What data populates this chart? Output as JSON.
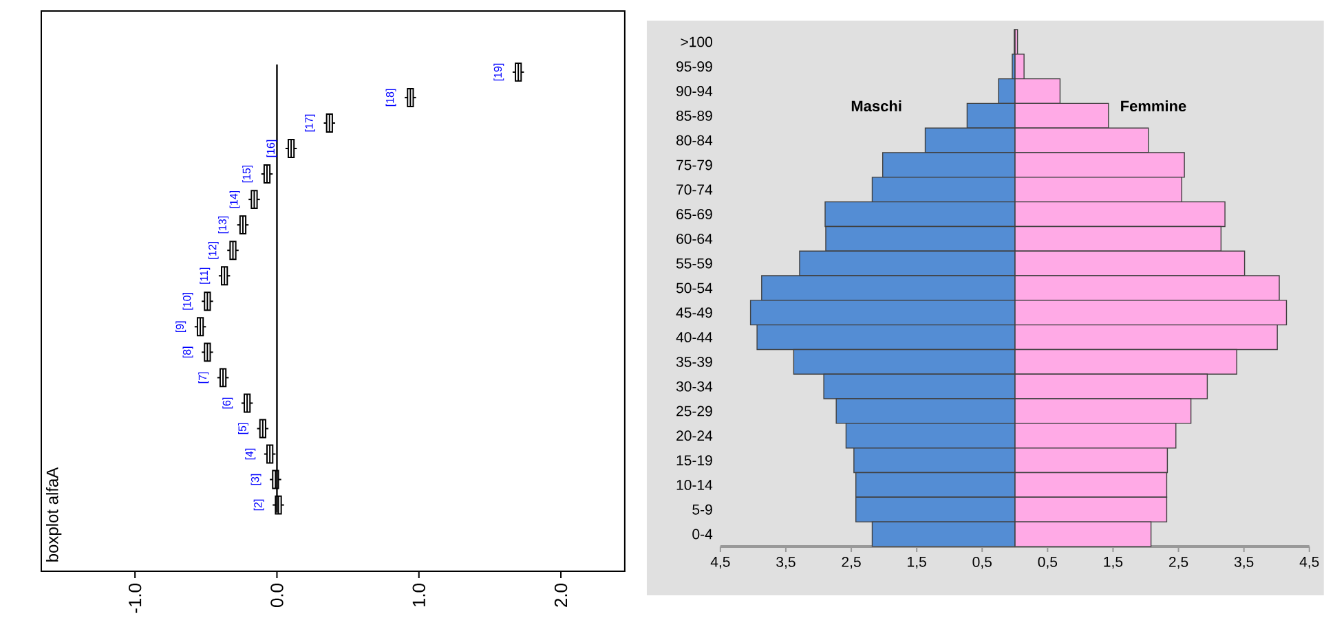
{
  "chart_data": [
    {
      "type": "box",
      "orientation": "horizontal",
      "title": "boxplot alfaA",
      "categories": [
        "[19]",
        "[18]",
        "[17]",
        "[16]",
        "[15]",
        "[14]",
        "[13]",
        "[12]",
        "[11]",
        "[10]",
        "[9]",
        "[8]",
        "[7]",
        "[6]",
        "[5]",
        "[4]",
        "[3]",
        "[2]"
      ],
      "boxes": [
        {
          "low": 1.66,
          "q1": 1.68,
          "median": 1.7,
          "q3": 1.72,
          "high": 1.74
        },
        {
          "low": 0.9,
          "q1": 0.92,
          "median": 0.94,
          "q3": 0.96,
          "high": 0.98
        },
        {
          "low": 0.33,
          "q1": 0.35,
          "median": 0.37,
          "q3": 0.39,
          "high": 0.41
        },
        {
          "low": 0.06,
          "q1": 0.08,
          "median": 0.1,
          "q3": 0.12,
          "high": 0.14
        },
        {
          "low": -0.11,
          "q1": -0.09,
          "median": -0.07,
          "q3": -0.05,
          "high": -0.03
        },
        {
          "low": -0.2,
          "q1": -0.18,
          "median": -0.16,
          "q3": -0.14,
          "high": -0.12
        },
        {
          "low": -0.28,
          "q1": -0.26,
          "median": -0.24,
          "q3": -0.22,
          "high": -0.2
        },
        {
          "low": -0.35,
          "q1": -0.33,
          "median": -0.31,
          "q3": -0.29,
          "high": -0.27
        },
        {
          "low": -0.41,
          "q1": -0.39,
          "median": -0.37,
          "q3": -0.35,
          "high": -0.33
        },
        {
          "low": -0.53,
          "q1": -0.51,
          "median": -0.49,
          "q3": -0.47,
          "high": -0.45
        },
        {
          "low": -0.58,
          "q1": -0.56,
          "median": -0.54,
          "q3": -0.52,
          "high": -0.5
        },
        {
          "low": -0.53,
          "q1": -0.51,
          "median": -0.49,
          "q3": -0.47,
          "high": -0.45
        },
        {
          "low": -0.42,
          "q1": -0.4,
          "median": -0.38,
          "q3": -0.36,
          "high": -0.34
        },
        {
          "low": -0.25,
          "q1": -0.23,
          "median": -0.21,
          "q3": -0.19,
          "high": -0.17
        },
        {
          "low": -0.14,
          "q1": -0.12,
          "median": -0.1,
          "q3": -0.08,
          "high": -0.06
        },
        {
          "low": -0.09,
          "q1": -0.07,
          "median": -0.05,
          "q3": -0.03,
          "high": -0.01
        },
        {
          "low": -0.05,
          "q1": -0.03,
          "median": -0.01,
          "q3": 0.01,
          "high": 0.03
        },
        {
          "low": -0.03,
          "q1": -0.01,
          "median": 0.01,
          "q3": 0.03,
          "high": 0.05
        }
      ],
      "xlim": [
        -1.66,
        2.45
      ],
      "xticks": [
        {
          "value": -1,
          "label": "-1.0"
        },
        {
          "value": 0,
          "label": "0.0"
        },
        {
          "value": 1,
          "label": "1.0"
        },
        {
          "value": 2,
          "label": "2.0"
        }
      ],
      "ref_lines": [
        {
          "axis": "x",
          "value": 0
        }
      ]
    },
    {
      "type": "bar",
      "orientation": "horizontal",
      "stacked": true,
      "categories": [
        ">100",
        "95-99",
        "90-94",
        "85-89",
        "80-84",
        "75-79",
        "70-74",
        "65-69",
        "60-64",
        "55-59",
        "50-54",
        "45-49",
        "40-44",
        "35-39",
        "30-34",
        "25-29",
        "20-24",
        "15-19",
        "10-14",
        "5-9",
        "0-4"
      ],
      "series": [
        {
          "name": "Maschi",
          "color": "#548dd4",
          "values": [
            -0.01,
            -0.04,
            -0.25,
            -0.73,
            -1.37,
            -2.02,
            -2.18,
            -2.9,
            -2.89,
            -3.29,
            -3.87,
            -4.04,
            -3.94,
            -3.38,
            -2.92,
            -2.73,
            -2.58,
            -2.46,
            -2.43,
            -2.43,
            -2.18
          ]
        },
        {
          "name": "Femmine",
          "color": "#ffaae6",
          "values": [
            0.04,
            0.14,
            0.69,
            1.43,
            2.04,
            2.59,
            2.55,
            3.21,
            3.15,
            3.51,
            4.04,
            4.15,
            4.01,
            3.39,
            2.94,
            2.69,
            2.46,
            2.33,
            2.32,
            2.32,
            2.08
          ]
        }
      ],
      "xlim": [
        -4.5,
        4.5
      ],
      "xticks": [
        {
          "value": -4.5,
          "label": "4,5"
        },
        {
          "value": -3.5,
          "label": "3,5"
        },
        {
          "value": -2.5,
          "label": "2,5"
        },
        {
          "value": -1.5,
          "label": "1,5"
        },
        {
          "value": -0.5,
          "label": "0,5"
        },
        {
          "value": 0.5,
          "label": "0,5"
        },
        {
          "value": 1.5,
          "label": "1,5"
        },
        {
          "value": 2.5,
          "label": "2,5"
        },
        {
          "value": 3.5,
          "label": "3,5"
        },
        {
          "value": 4.5,
          "label": "4,5"
        }
      ]
    }
  ]
}
